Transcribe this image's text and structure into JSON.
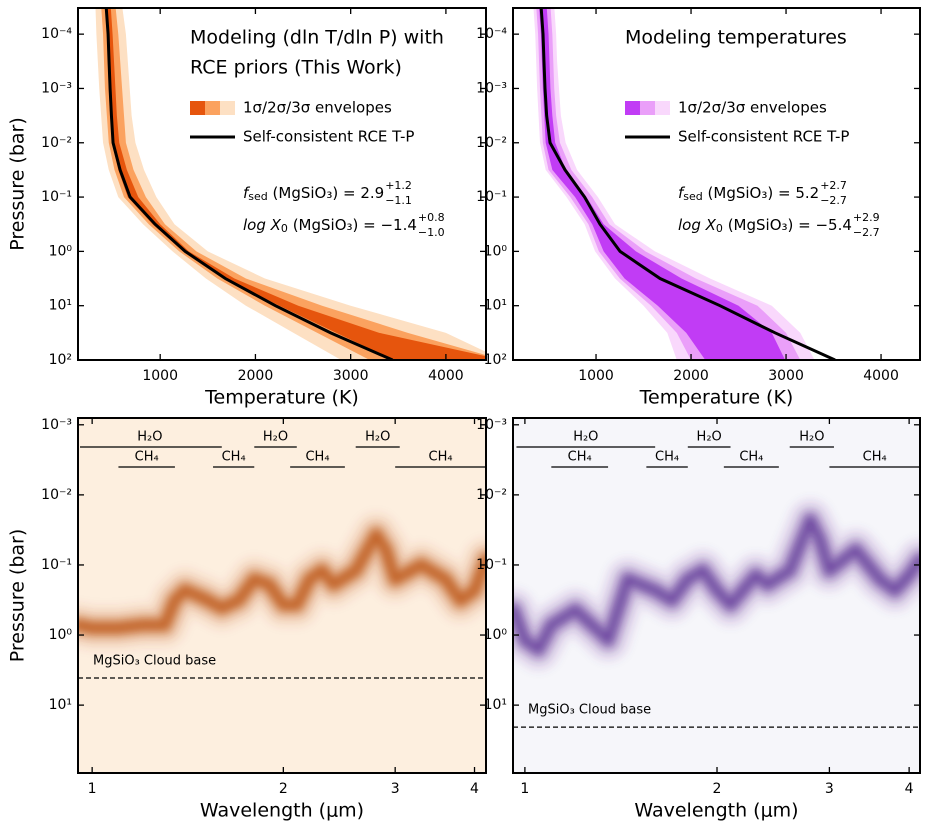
{
  "chart_data": [
    {
      "type": "profile",
      "title": [
        "Modeling (dln T/dln P) with",
        "RCE priors (This Work)"
      ],
      "text_color": "#e6550d",
      "xlabel": "Temperature (K)",
      "ylabel": "Pressure (bar)",
      "xscale": "linear",
      "yscale": "log",
      "xlim": [
        137,
        4421
      ],
      "ylim": [
        100,
        3.3e-05
      ],
      "xticks": [
        1000,
        2000,
        3000,
        4000
      ],
      "yticks": [
        {
          "value": 0.0001,
          "label": "10⁻⁴"
        },
        {
          "value": 0.001,
          "label": "10⁻³"
        },
        {
          "value": 0.01,
          "label": "10⁻²"
        },
        {
          "value": 0.1,
          "label": "10⁻¹"
        },
        {
          "value": 1,
          "label": "10⁰"
        },
        {
          "value": 10,
          "label": "10¹"
        },
        {
          "value": 100,
          "label": "10²"
        }
      ],
      "pressure": [
        3e-05,
        0.0001,
        0.000316,
        0.001,
        0.00316,
        0.01,
        0.0316,
        0.1,
        0.316,
        1,
        3.16,
        10,
        31.6,
        100
      ],
      "bands_label": "1σ/2σ/3σ envelopes",
      "bands": [
        {
          "color": "#e6550d",
          "lower": [
            420,
            440,
            450,
            460,
            475,
            495,
            560,
            660,
            920,
            1240,
            1680,
            2250,
            2850,
            3450
          ],
          "upper": [
            480,
            500,
            515,
            530,
            545,
            570,
            650,
            770,
            1000,
            1300,
            1780,
            2450,
            3300,
            4600
          ]
        },
        {
          "color": "#fba25f",
          "lower": [
            380,
            400,
            410,
            420,
            440,
            460,
            520,
            620,
            880,
            1200,
            1600,
            2100,
            2650,
            3200
          ],
          "upper": [
            530,
            560,
            580,
            600,
            620,
            640,
            720,
            850,
            1050,
            1380,
            1900,
            2700,
            3600,
            4600
          ]
        },
        {
          "color": "#fde0c3",
          "lower": [
            320,
            330,
            345,
            360,
            380,
            400,
            460,
            560,
            820,
            1130,
            1480,
            1900,
            2400,
            2900
          ],
          "upper": [
            600,
            640,
            660,
            680,
            700,
            740,
            830,
            960,
            1150,
            1500,
            2100,
            3000,
            4000,
            4600
          ]
        }
      ],
      "series": [
        {
          "name": "Self-consistent RCE T-P",
          "color": "#000000",
          "values": [
            432,
            453,
            463,
            474,
            488,
            505,
            579,
            684,
            947,
            1263,
            1684,
            2210,
            2790,
            3440
          ]
        }
      ],
      "annotations": [
        {
          "symbol": "f",
          "subscript": "sed",
          "species": " (MgSiO₃) = ",
          "value": 2.9,
          "value_label": "2.9",
          "upper": "+1.2",
          "lower": "−1.1"
        },
        {
          "symbol": "log X",
          "subscript": "0",
          "species": " (MgSiO₃) = ",
          "value": -1.4,
          "value_label": "−1.4",
          "upper": "+0.8",
          "lower": "−1.0"
        }
      ]
    },
    {
      "type": "profile",
      "title": [
        "Modeling temperatures"
      ],
      "text_color": "#c03ef0",
      "xlabel": "Temperature (K)",
      "xscale": "linear",
      "yscale": "log",
      "xlim": [
        126,
        4410
      ],
      "ylim": [
        100,
        3.3e-05
      ],
      "xticks": [
        1000,
        2000,
        3000,
        4000
      ],
      "yticks": [
        {
          "value": 0.0001,
          "label": "10⁻⁴"
        },
        {
          "value": 0.001,
          "label": "10⁻³"
        },
        {
          "value": 0.01,
          "label": "10⁻²"
        },
        {
          "value": 0.1,
          "label": "10⁻¹"
        },
        {
          "value": 1,
          "label": "10⁰"
        },
        {
          "value": 10,
          "label": "10¹"
        },
        {
          "value": 100,
          "label": "10²"
        }
      ],
      "pressure": [
        3e-05,
        0.0001,
        0.000316,
        0.001,
        0.00316,
        0.01,
        0.0316,
        0.1,
        0.316,
        1,
        3.16,
        10,
        31.6,
        100
      ],
      "bands_label": "1σ/2σ/3σ envelopes",
      "bands": [
        {
          "color": "#c13cf5",
          "lower": [
            400,
            420,
            430,
            440,
            455,
            470,
            540,
            780,
            960,
            1080,
            1300,
            1650,
            1950,
            2150
          ],
          "upper": [
            480,
            500,
            510,
            520,
            540,
            570,
            680,
            900,
            1080,
            1420,
            1900,
            2500,
            2850,
            2990
          ]
        },
        {
          "color": "#ea9ff9",
          "lower": [
            370,
            390,
            400,
            410,
            425,
            440,
            500,
            730,
            920,
            1030,
            1250,
            1580,
            1850,
            2000
          ],
          "upper": [
            520,
            540,
            550,
            560,
            580,
            620,
            740,
            960,
            1140,
            1520,
            2050,
            2700,
            3000,
            3150
          ]
        },
        {
          "color": "#f9d8fc",
          "lower": [
            340,
            360,
            370,
            380,
            395,
            410,
            470,
            690,
            880,
            990,
            1200,
            1500,
            1750,
            1850
          ],
          "upper": [
            560,
            580,
            590,
            610,
            630,
            680,
            800,
            1020,
            1200,
            1620,
            2200,
            2850,
            3150,
            3300
          ]
        }
      ],
      "series": [
        {
          "name": "Self-consistent RCE T-P",
          "color": "#000000",
          "values": [
            421,
            442,
            452,
            463,
            480,
            516,
            674,
            880,
            1042,
            1253,
            1674,
            2305,
            2884,
            3516
          ]
        }
      ],
      "annotations": [
        {
          "symbol": "f",
          "subscript": "sed",
          "species": " (MgSiO₃) = ",
          "value": 5.2,
          "value_label": "5.2",
          "upper": "+2.7",
          "lower": "−2.7"
        },
        {
          "symbol": "log X",
          "subscript": "0",
          "species": " (MgSiO₃) = ",
          "value": -5.4,
          "value_label": "−5.4",
          "upper": "+2.9",
          "lower": "−2.7"
        }
      ]
    },
    {
      "type": "contribution",
      "xlabel": "Wavelength (μm)",
      "ylabel": "Pressure (bar)",
      "xscale": "log",
      "yscale": "log",
      "background": "#fdefdf",
      "xlim": [
        0.95,
        4.17
      ],
      "ylim": [
        93,
        0.0008
      ],
      "xticks": [
        1,
        2,
        3,
        4
      ],
      "yticks": [
        {
          "value": 0.001,
          "label": "10⁻³"
        },
        {
          "value": 0.01,
          "label": "10⁻²"
        },
        {
          "value": 0.1,
          "label": "10⁻¹"
        },
        {
          "value": 1,
          "label": "10⁰"
        },
        {
          "value": 10,
          "label": "10¹"
        }
      ],
      "series": [
        {
          "color": "#b5420a",
          "x": [
            0.95,
            1.0,
            1.1,
            1.2,
            1.3,
            1.35,
            1.4,
            1.5,
            1.6,
            1.7,
            1.8,
            1.9,
            2.0,
            2.1,
            2.2,
            2.3,
            2.4,
            2.6,
            2.8,
            2.9,
            3.0,
            3.3,
            3.6,
            3.8,
            4.0,
            4.17
          ],
          "values": [
            0.72,
            0.79,
            0.79,
            0.72,
            0.72,
            0.32,
            0.23,
            0.3,
            0.41,
            0.32,
            0.16,
            0.19,
            0.37,
            0.37,
            0.16,
            0.12,
            0.19,
            0.12,
            0.037,
            0.061,
            0.16,
            0.1,
            0.16,
            0.32,
            0.23,
            0.085
          ]
        }
      ],
      "cloud_base": {
        "label": "MgSiO₃ Cloud base",
        "value": 4.1
      },
      "molecule_bands": [
        {
          "label": "H₂O",
          "range": [
            0.95,
            1.6
          ]
        },
        {
          "label": "CH₄",
          "range": [
            1.1,
            1.35
          ]
        },
        {
          "label": "CH₄",
          "range": [
            1.55,
            1.8
          ]
        },
        {
          "label": "H₂O",
          "range": [
            1.8,
            2.1
          ]
        },
        {
          "label": "CH₄",
          "range": [
            2.05,
            2.5
          ]
        },
        {
          "label": "H₂O",
          "range": [
            2.6,
            3.05
          ]
        },
        {
          "label": "CH₄",
          "range": [
            3.0,
            4.17
          ]
        }
      ]
    },
    {
      "type": "contribution",
      "xlabel": "Wavelength (μm)",
      "xscale": "log",
      "yscale": "log",
      "background": "#f6f6fa",
      "xlim": [
        0.958,
        4.16
      ],
      "ylim": [
        93,
        0.0008
      ],
      "xticks": [
        1,
        2,
        3,
        4
      ],
      "yticks": [
        {
          "value": 0.001,
          "label": "10⁻³"
        },
        {
          "value": 0.01,
          "label": "10⁻²"
        },
        {
          "value": 0.1,
          "label": "10⁻¹"
        },
        {
          "value": 1,
          "label": "10⁰"
        },
        {
          "value": 10,
          "label": "10¹"
        }
      ],
      "series": [
        {
          "color": "#54278f",
          "x": [
            0.96,
            1.0,
            1.05,
            1.1,
            1.2,
            1.3,
            1.35,
            1.45,
            1.6,
            1.7,
            1.8,
            1.9,
            2.0,
            2.1,
            2.3,
            2.4,
            2.6,
            2.8,
            2.9,
            3.0,
            3.3,
            3.6,
            3.8,
            4.0,
            4.16
          ],
          "values": [
            0.44,
            1.18,
            1.6,
            0.72,
            0.44,
            0.85,
            1.18,
            0.16,
            0.23,
            0.32,
            0.16,
            0.12,
            0.23,
            0.37,
            0.14,
            0.19,
            0.12,
            0.023,
            0.044,
            0.12,
            0.061,
            0.16,
            0.23,
            0.14,
            0.085
          ]
        }
      ],
      "cloud_base": {
        "label": "MgSiO₃ Cloud base",
        "value": 20.6
      },
      "molecule_bands": [
        {
          "label": "H₂O",
          "range": [
            0.97,
            1.6
          ]
        },
        {
          "label": "CH₄",
          "range": [
            1.1,
            1.35
          ]
        },
        {
          "label": "CH₄",
          "range": [
            1.55,
            1.8
          ]
        },
        {
          "label": "H₂O",
          "range": [
            1.8,
            2.1
          ]
        },
        {
          "label": "CH₄",
          "range": [
            2.05,
            2.5
          ]
        },
        {
          "label": "H₂O",
          "range": [
            2.6,
            3.05
          ]
        },
        {
          "label": "CH₄",
          "range": [
            3.0,
            4.16
          ]
        }
      ]
    }
  ]
}
